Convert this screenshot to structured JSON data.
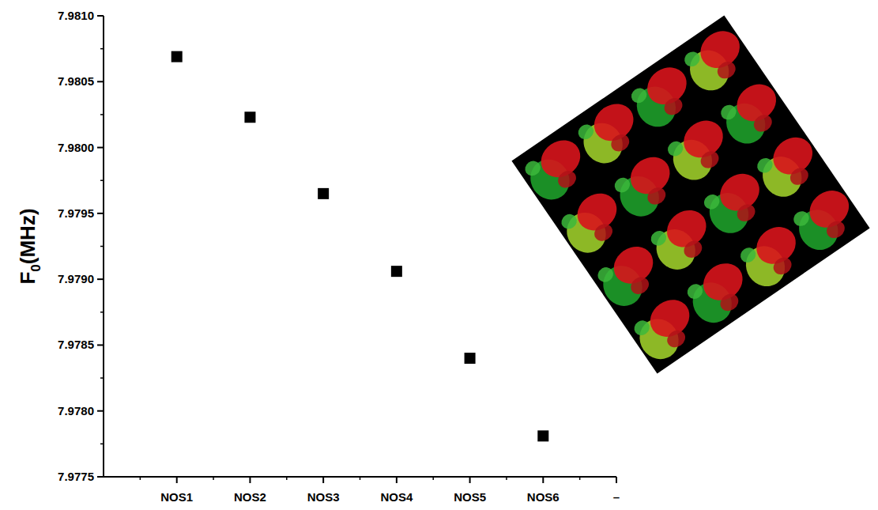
{
  "chart_data": {
    "type": "scatter",
    "y_label": "F0(MHz)",
    "categories": [
      null,
      "NOS1",
      "NOS2",
      "NOS3",
      "NOS4",
      "NOS5",
      "NOS6",
      "–"
    ],
    "values": [
      null,
      7.98069,
      7.98023,
      7.97965,
      7.97906,
      7.9784,
      7.97781,
      null
    ],
    "color": "#000000",
    "marker": "square",
    "ylim": [
      7.9775,
      7.981
    ],
    "yticks": [
      7.9775,
      {
        "value": 7.978,
        "label": "7.9780"
      },
      7.9785,
      {
        "value": 7.979,
        "label": "7.9790"
      },
      7.9795,
      {
        "value": 7.98,
        "label": "7.9800"
      },
      7.9805,
      {
        "value": 7.981,
        "label": "7.9810"
      }
    ],
    "grid": false
  }
}
